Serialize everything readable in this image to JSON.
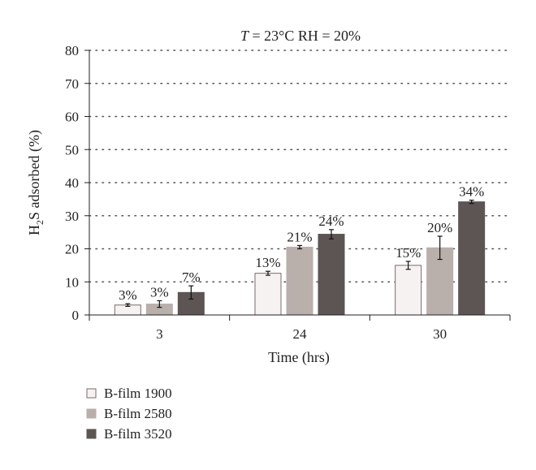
{
  "chart_data": {
    "type": "bar",
    "title_parts": {
      "var": "T",
      "rest": " = 23°C RH = 20%"
    },
    "xlabel": "Time (hrs)",
    "ylabel_parts": {
      "pre": "H",
      "sub": "2",
      "post": "S adsorbed (%)"
    },
    "categories": [
      "3",
      "24",
      "30"
    ],
    "ylim": [
      0,
      80
    ],
    "yticks": [
      0,
      10,
      20,
      30,
      40,
      50,
      60,
      70,
      80
    ],
    "grid": true,
    "legend_position": "bottom-left",
    "series": [
      {
        "name": "B-film 1900",
        "color": "#f7f2f2",
        "stroke": "#7a6a6a",
        "values": [
          3,
          12.6,
          15
        ],
        "errors": [
          0.4,
          0.6,
          1.2
        ],
        "labels": [
          "3%",
          "13%",
          "15%"
        ]
      },
      {
        "name": "B-film 2580",
        "color": "#b9afab",
        "stroke": "#b9afab",
        "values": [
          3.3,
          20.5,
          20.3
        ],
        "errors": [
          1.0,
          0.5,
          3.5
        ],
        "labels": [
          "3%",
          "21%",
          "20%"
        ]
      },
      {
        "name": "B-film 3520",
        "color": "#5d5454",
        "stroke": "#5d5454",
        "values": [
          6.8,
          24.4,
          34.2
        ],
        "errors": [
          2.0,
          1.4,
          0.5
        ],
        "labels": [
          "7%",
          "24%",
          "34%"
        ]
      }
    ]
  }
}
